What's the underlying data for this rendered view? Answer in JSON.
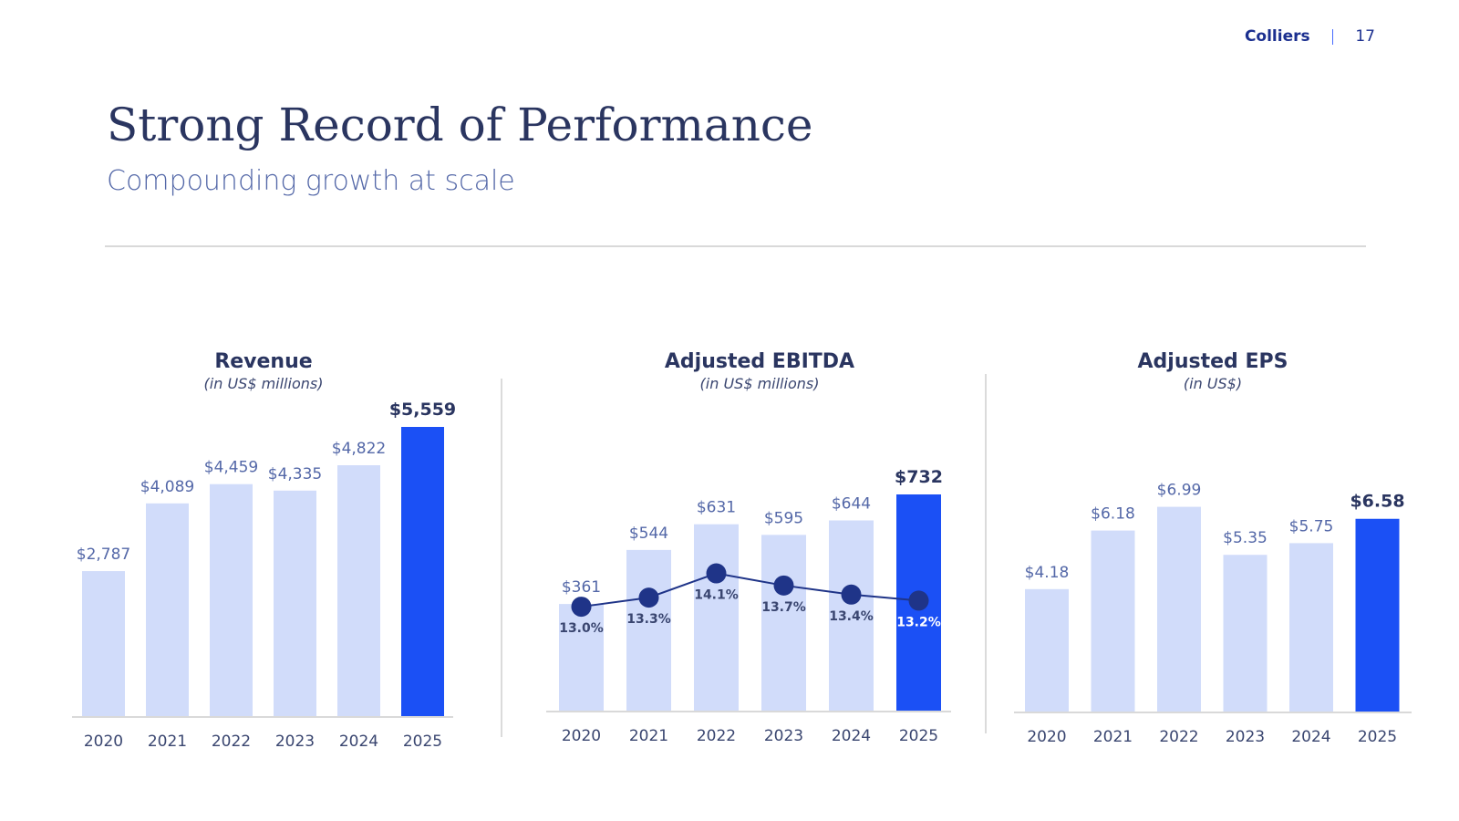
{
  "header": {
    "brand": "Colliers",
    "separator": "|",
    "page_number": "17"
  },
  "title": "Strong Record of Performance",
  "subtitle": "Compounding growth at scale",
  "colors": {
    "bar": "#d1dcfa",
    "highlight": "#1b50f5",
    "line": "#1f3488",
    "marker": "#1f3488",
    "axis": "#d9d9d9",
    "divider": "#cfcfcf"
  },
  "chart_data": [
    {
      "type": "bar",
      "title": "Revenue",
      "unit_label": "(in US$ millions)",
      "categories": [
        "2020",
        "2021",
        "2022",
        "2023",
        "2024",
        "2025"
      ],
      "values": [
        2787,
        4089,
        4459,
        4335,
        4822,
        5559
      ],
      "value_labels": [
        "$2,787",
        "$4,089",
        "$4,459",
        "$4,335",
        "$4,822",
        "$5,559"
      ],
      "highlight_index": 5,
      "ylim": [
        0,
        5559
      ]
    },
    {
      "type": "bar",
      "title": "Adjusted EBITDA",
      "unit_label": "(in US$ millions)",
      "categories": [
        "2020",
        "2021",
        "2022",
        "2023",
        "2024",
        "2025"
      ],
      "values": [
        361,
        544,
        631,
        595,
        644,
        732
      ],
      "value_labels": [
        "$361",
        "$544",
        "$631",
        "$595",
        "$644",
        "$732"
      ],
      "highlight_index": 5,
      "ylim": [
        0,
        732
      ],
      "margin": {
        "type": "line",
        "values": [
          13.0,
          13.3,
          14.1,
          13.7,
          13.4,
          13.2
        ],
        "labels": [
          "13.0%",
          "13.3%",
          "14.1%",
          "13.7%",
          "13.4%",
          "13.2%"
        ],
        "ylim": [
          9.6,
          15.2
        ]
      }
    },
    {
      "type": "bar",
      "title": "Adjusted EPS",
      "unit_label": "(in US$)",
      "categories": [
        "2020",
        "2021",
        "2022",
        "2023",
        "2024",
        "2025"
      ],
      "values": [
        4.18,
        6.18,
        6.99,
        5.35,
        5.75,
        6.58
      ],
      "value_labels": [
        "$4.18",
        "$6.18",
        "$6.99",
        "$5.35",
        "$5.75",
        "$6.58"
      ],
      "highlight_index": 5,
      "ylim": [
        0,
        7.6
      ]
    }
  ]
}
